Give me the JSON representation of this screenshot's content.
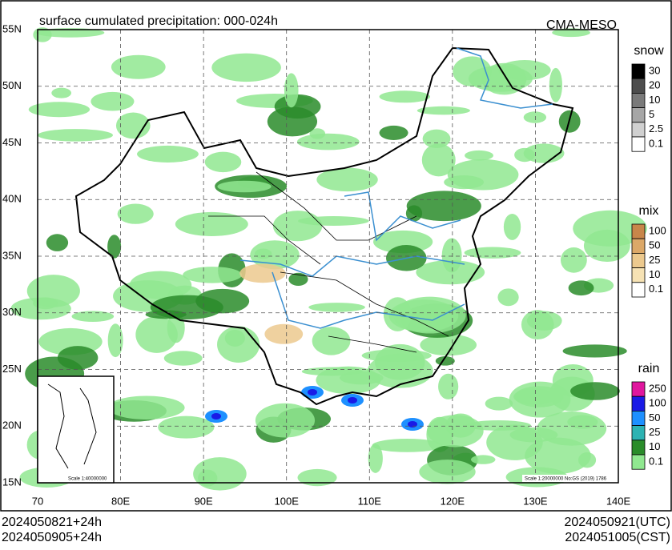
{
  "header": {
    "title": "surface cumulated precipitation: 000-024h",
    "source": "CMA-MESO"
  },
  "lat_labels": [
    "55N",
    "50N",
    "45N",
    "40N",
    "35N",
    "30N",
    "25N",
    "20N",
    "15N"
  ],
  "lon_labels": [
    "70",
    "80E",
    "90E",
    "100E",
    "110E",
    "120E",
    "130E",
    "140E"
  ],
  "legends": [
    {
      "title": "snow",
      "levels": [
        {
          "label": "30",
          "color": "#000000"
        },
        {
          "label": "20",
          "color": "#4d4d4d"
        },
        {
          "label": "10",
          "color": "#7a7a7a"
        },
        {
          "label": "5",
          "color": "#a6a6a6"
        },
        {
          "label": "2.5",
          "color": "#d0d0d0"
        },
        {
          "label": "0.1",
          "color": "#ffffff"
        }
      ]
    },
    {
      "title": "mix",
      "levels": [
        {
          "label": "100",
          "color": "#c8864a"
        },
        {
          "label": "50",
          "color": "#dca868"
        },
        {
          "label": "25",
          "color": "#ecc98e"
        },
        {
          "label": "10",
          "color": "#f6e2b4"
        },
        {
          "label": "0.1",
          "color": "#ffffff"
        }
      ]
    },
    {
      "title": "rain",
      "levels": [
        {
          "label": "250",
          "color": "#e0169e"
        },
        {
          "label": "100",
          "color": "#1a1ae6"
        },
        {
          "label": "50",
          "color": "#1e90ff"
        },
        {
          "label": "25",
          "color": "#2db3b3"
        },
        {
          "label": "10",
          "color": "#2a8c2a"
        },
        {
          "label": "0.1",
          "color": "#90e890"
        }
      ]
    }
  ],
  "inset_scale": "Scale 1:40000000",
  "map_scale": "Scale 1:20000000 No:GS (2019) 1786",
  "footer": {
    "init_utc": "2024050821+24h",
    "init_cst": "2024050905+24h",
    "valid_utc": "2024050921(UTC)",
    "valid_cst": "2024051005(CST)"
  }
}
